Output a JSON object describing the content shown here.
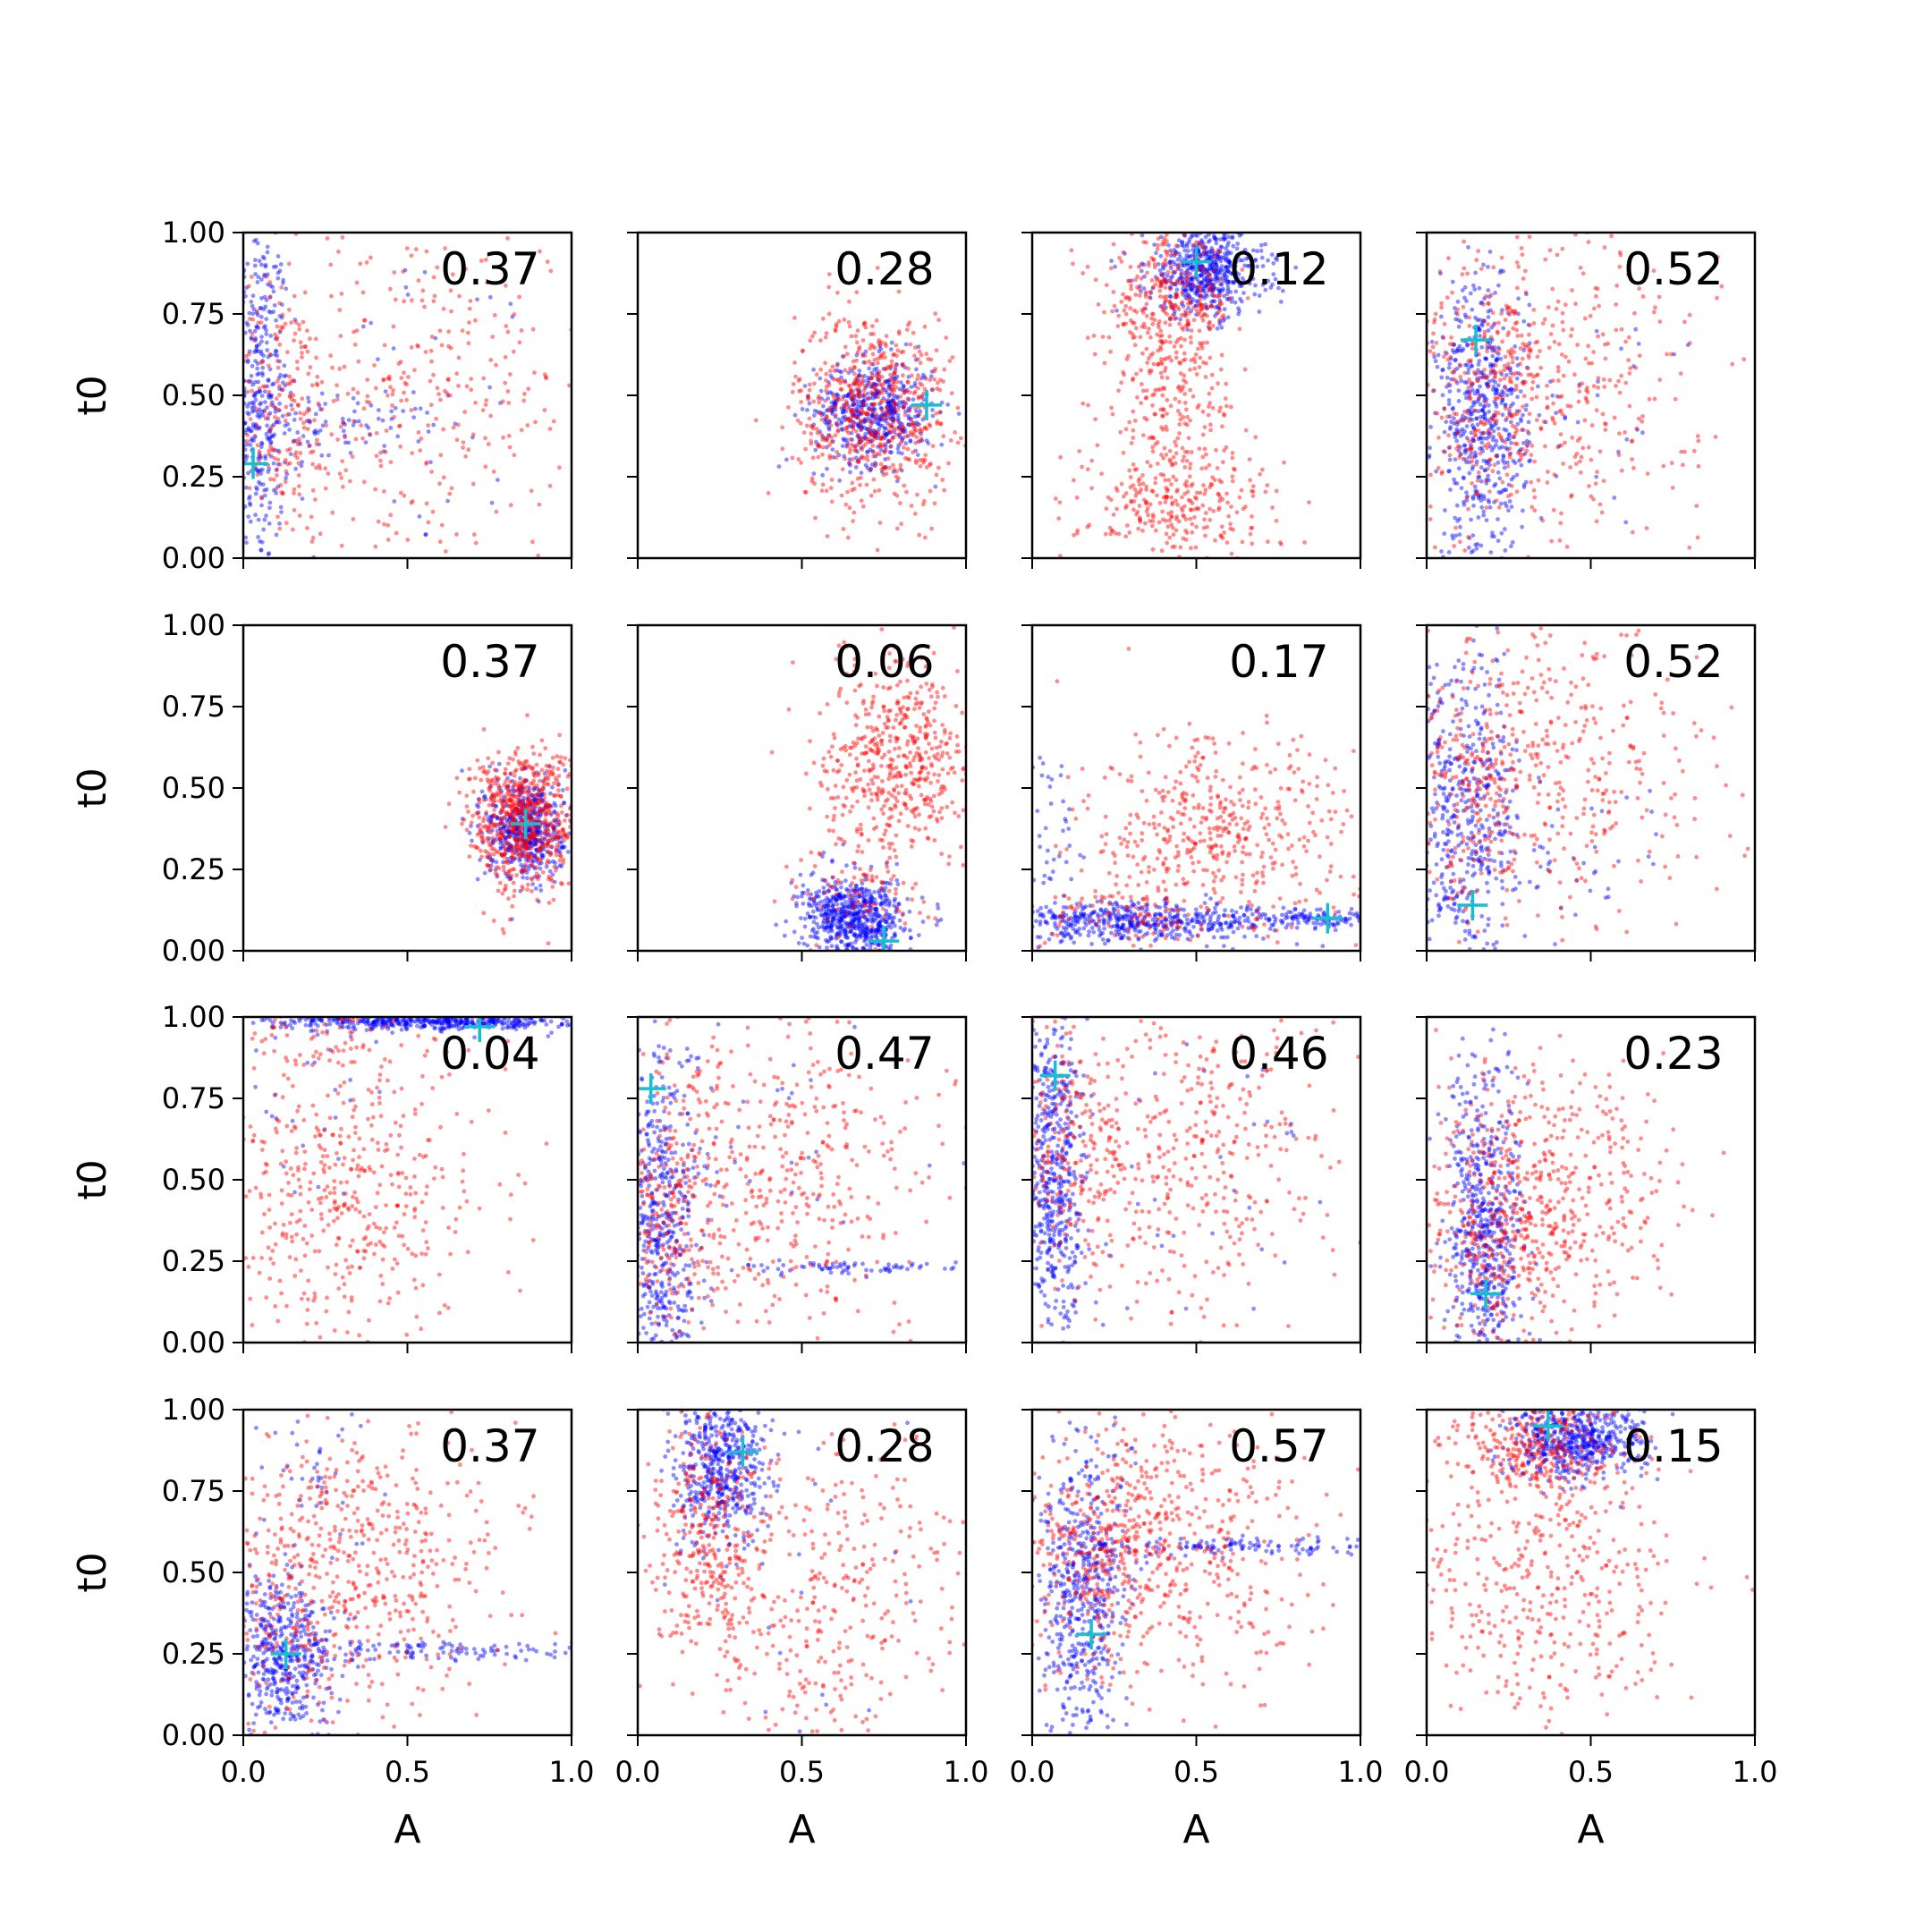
{
  "chart_data": {
    "type": "scatter",
    "layout": "4x4 grid of scatter panels",
    "xlabel": "A",
    "ylabel": "t0",
    "xlim": [
      0,
      1
    ],
    "ylim": [
      0,
      1
    ],
    "xticks": [
      "0.0",
      "0.5",
      "1.0"
    ],
    "yticks": [
      "0.00",
      "0.25",
      "0.50",
      "0.75",
      "1.00"
    ],
    "series_colors": {
      "posterior_a": "#0000ff",
      "posterior_b": "#ff0000",
      "truth_marker": "#17becf"
    },
    "panels": [
      {
        "annotation": "0.37",
        "truth": [
          0.03,
          0.29
        ],
        "blue": [
          {
            "cx": 0.04,
            "cy": 0.5,
            "sx": 0.05,
            "sy": 0.28,
            "n": 420
          },
          {
            "cx": 0.3,
            "cy": 0.4,
            "sx": 0.15,
            "sy": 0.05,
            "n": 80
          },
          {
            "cx": 0.5,
            "cy": 0.5,
            "sx": 0.3,
            "sy": 0.3,
            "n": 50
          }
        ],
        "red": [
          {
            "cx": 0.5,
            "cy": 0.5,
            "sx": 0.3,
            "sy": 0.28,
            "n": 380
          },
          {
            "cx": 0.12,
            "cy": 0.45,
            "sx": 0.08,
            "sy": 0.2,
            "n": 160
          }
        ]
      },
      {
        "annotation": "0.28",
        "truth": [
          0.88,
          0.47
        ],
        "blue": [
          {
            "cx": 0.72,
            "cy": 0.45,
            "sx": 0.09,
            "sy": 0.08,
            "n": 520
          }
        ],
        "red": [
          {
            "cx": 0.72,
            "cy": 0.46,
            "sx": 0.12,
            "sy": 0.15,
            "n": 620
          }
        ]
      },
      {
        "annotation": "0.12",
        "truth": [
          0.5,
          0.91
        ],
        "blue": [
          {
            "cx": 0.53,
            "cy": 0.88,
            "sx": 0.09,
            "sy": 0.07,
            "n": 560
          }
        ],
        "red": [
          {
            "cx": 0.42,
            "cy": 0.78,
            "sx": 0.1,
            "sy": 0.1,
            "n": 320
          },
          {
            "cx": 0.42,
            "cy": 0.45,
            "sx": 0.1,
            "sy": 0.15,
            "n": 220
          },
          {
            "cx": 0.45,
            "cy": 0.15,
            "sx": 0.15,
            "sy": 0.09,
            "n": 260
          }
        ]
      },
      {
        "annotation": "0.52",
        "truth": [
          0.15,
          0.67
        ],
        "blue": [
          {
            "cx": 0.17,
            "cy": 0.42,
            "sx": 0.07,
            "sy": 0.22,
            "n": 560
          },
          {
            "cx": 0.5,
            "cy": 0.45,
            "sx": 0.2,
            "sy": 0.15,
            "n": 30
          }
        ],
        "red": [
          {
            "cx": 0.35,
            "cy": 0.55,
            "sx": 0.25,
            "sy": 0.25,
            "n": 420
          },
          {
            "cx": 0.2,
            "cy": 0.5,
            "sx": 0.1,
            "sy": 0.2,
            "n": 200
          }
        ]
      },
      {
        "annotation": "0.37",
        "truth": [
          0.86,
          0.39
        ],
        "blue": [
          {
            "cx": 0.86,
            "cy": 0.38,
            "sx": 0.06,
            "sy": 0.08,
            "n": 520
          }
        ],
        "red": [
          {
            "cx": 0.85,
            "cy": 0.4,
            "sx": 0.08,
            "sy": 0.11,
            "n": 680
          }
        ]
      },
      {
        "annotation": "0.06",
        "truth": [
          0.75,
          0.03
        ],
        "blue": [
          {
            "cx": 0.66,
            "cy": 0.1,
            "sx": 0.08,
            "sy": 0.06,
            "n": 640
          }
        ],
        "red": [
          {
            "cx": 0.8,
            "cy": 0.6,
            "sx": 0.12,
            "sy": 0.15,
            "n": 520
          },
          {
            "cx": 0.7,
            "cy": 0.2,
            "sx": 0.1,
            "sy": 0.1,
            "n": 100
          }
        ]
      },
      {
        "annotation": "0.17",
        "truth": [
          0.9,
          0.1
        ],
        "blue": [
          {
            "cx": 0.35,
            "cy": 0.09,
            "sx": 0.22,
            "sy": 0.03,
            "n": 480
          },
          {
            "cx": 0.85,
            "cy": 0.1,
            "sx": 0.12,
            "sy": 0.015,
            "n": 120
          },
          {
            "cx": 0.05,
            "cy": 0.3,
            "sx": 0.04,
            "sy": 0.2,
            "n": 60
          }
        ],
        "red": [
          {
            "cx": 0.55,
            "cy": 0.35,
            "sx": 0.22,
            "sy": 0.15,
            "n": 480
          },
          {
            "cx": 0.3,
            "cy": 0.1,
            "sx": 0.15,
            "sy": 0.05,
            "n": 80
          }
        ]
      },
      {
        "annotation": "0.52",
        "truth": [
          0.14,
          0.14
        ],
        "blue": [
          {
            "cx": 0.12,
            "cy": 0.42,
            "sx": 0.08,
            "sy": 0.25,
            "n": 480
          },
          {
            "cx": 0.45,
            "cy": 0.3,
            "sx": 0.2,
            "sy": 0.1,
            "n": 40
          }
        ],
        "red": [
          {
            "cx": 0.35,
            "cy": 0.55,
            "sx": 0.25,
            "sy": 0.25,
            "n": 420
          },
          {
            "cx": 0.15,
            "cy": 0.5,
            "sx": 0.1,
            "sy": 0.2,
            "n": 150
          }
        ]
      },
      {
        "annotation": "0.04",
        "truth": [
          0.72,
          0.97
        ],
        "blue": [
          {
            "cx": 0.6,
            "cy": 0.985,
            "sx": 0.25,
            "sy": 0.012,
            "n": 480
          },
          {
            "cx": 0.2,
            "cy": 0.8,
            "sx": 0.1,
            "sy": 0.15,
            "n": 30
          }
        ],
        "red": [
          {
            "cx": 0.3,
            "cy": 0.45,
            "sx": 0.22,
            "sy": 0.25,
            "n": 500
          },
          {
            "cx": 0.2,
            "cy": 0.95,
            "sx": 0.15,
            "sy": 0.05,
            "n": 60
          }
        ]
      },
      {
        "annotation": "0.47",
        "truth": [
          0.04,
          0.78
        ],
        "blue": [
          {
            "cx": 0.07,
            "cy": 0.35,
            "sx": 0.06,
            "sy": 0.25,
            "n": 520
          },
          {
            "cx": 0.6,
            "cy": 0.23,
            "sx": 0.2,
            "sy": 0.01,
            "n": 70
          },
          {
            "cx": 0.4,
            "cy": 0.6,
            "sx": 0.25,
            "sy": 0.25,
            "n": 40
          }
        ],
        "red": [
          {
            "cx": 0.4,
            "cy": 0.55,
            "sx": 0.25,
            "sy": 0.25,
            "n": 480
          },
          {
            "cx": 0.1,
            "cy": 0.35,
            "sx": 0.08,
            "sy": 0.15,
            "n": 180
          }
        ]
      },
      {
        "annotation": "0.46",
        "truth": [
          0.07,
          0.82
        ],
        "blue": [
          {
            "cx": 0.06,
            "cy": 0.5,
            "sx": 0.05,
            "sy": 0.3,
            "n": 560
          },
          {
            "cx": 0.5,
            "cy": 0.5,
            "sx": 0.3,
            "sy": 0.3,
            "n": 40
          }
        ],
        "red": [
          {
            "cx": 0.45,
            "cy": 0.55,
            "sx": 0.25,
            "sy": 0.25,
            "n": 450
          },
          {
            "cx": 0.1,
            "cy": 0.6,
            "sx": 0.08,
            "sy": 0.2,
            "n": 150
          }
        ]
      },
      {
        "annotation": "0.23",
        "truth": [
          0.18,
          0.15
        ],
        "blue": [
          {
            "cx": 0.18,
            "cy": 0.32,
            "sx": 0.06,
            "sy": 0.22,
            "n": 560
          },
          {
            "cx": 0.2,
            "cy": 0.8,
            "sx": 0.05,
            "sy": 0.1,
            "n": 30
          }
        ],
        "red": [
          {
            "cx": 0.35,
            "cy": 0.45,
            "sx": 0.2,
            "sy": 0.2,
            "n": 520
          },
          {
            "cx": 0.2,
            "cy": 0.3,
            "sx": 0.07,
            "sy": 0.15,
            "n": 150
          }
        ]
      },
      {
        "annotation": "0.37",
        "truth": [
          0.13,
          0.25
        ],
        "blue": [
          {
            "cx": 0.12,
            "cy": 0.25,
            "sx": 0.08,
            "sy": 0.12,
            "n": 480
          },
          {
            "cx": 0.6,
            "cy": 0.26,
            "sx": 0.25,
            "sy": 0.015,
            "n": 110
          },
          {
            "cx": 0.2,
            "cy": 0.8,
            "sx": 0.1,
            "sy": 0.15,
            "n": 40
          }
        ],
        "red": [
          {
            "cx": 0.4,
            "cy": 0.55,
            "sx": 0.22,
            "sy": 0.25,
            "n": 480
          },
          {
            "cx": 0.15,
            "cy": 0.4,
            "sx": 0.1,
            "sy": 0.2,
            "n": 140
          }
        ]
      },
      {
        "annotation": "0.28",
        "truth": [
          0.32,
          0.87
        ],
        "blue": [
          {
            "cx": 0.25,
            "cy": 0.83,
            "sx": 0.07,
            "sy": 0.12,
            "n": 520
          },
          {
            "cx": 0.5,
            "cy": 0.5,
            "sx": 0.25,
            "sy": 0.3,
            "n": 30
          }
        ],
        "red": [
          {
            "cx": 0.2,
            "cy": 0.6,
            "sx": 0.08,
            "sy": 0.2,
            "n": 300
          },
          {
            "cx": 0.55,
            "cy": 0.45,
            "sx": 0.25,
            "sy": 0.28,
            "n": 400
          }
        ]
      },
      {
        "annotation": "0.57",
        "truth": [
          0.18,
          0.31
        ],
        "blue": [
          {
            "cx": 0.15,
            "cy": 0.5,
            "sx": 0.07,
            "sy": 0.2,
            "n": 420
          },
          {
            "cx": 0.6,
            "cy": 0.58,
            "sx": 0.25,
            "sy": 0.015,
            "n": 130
          },
          {
            "cx": 0.15,
            "cy": 0.2,
            "sx": 0.06,
            "sy": 0.1,
            "n": 100
          }
        ],
        "red": [
          {
            "cx": 0.4,
            "cy": 0.55,
            "sx": 0.22,
            "sy": 0.22,
            "n": 480
          },
          {
            "cx": 0.22,
            "cy": 0.55,
            "sx": 0.1,
            "sy": 0.15,
            "n": 200
          }
        ]
      },
      {
        "annotation": "0.15",
        "truth": [
          0.37,
          0.95
        ],
        "blue": [
          {
            "cx": 0.45,
            "cy": 0.9,
            "sx": 0.1,
            "sy": 0.06,
            "n": 560
          }
        ],
        "red": [
          {
            "cx": 0.35,
            "cy": 0.88,
            "sx": 0.13,
            "sy": 0.08,
            "n": 320
          },
          {
            "cx": 0.35,
            "cy": 0.45,
            "sx": 0.22,
            "sy": 0.22,
            "n": 380
          }
        ]
      }
    ]
  }
}
